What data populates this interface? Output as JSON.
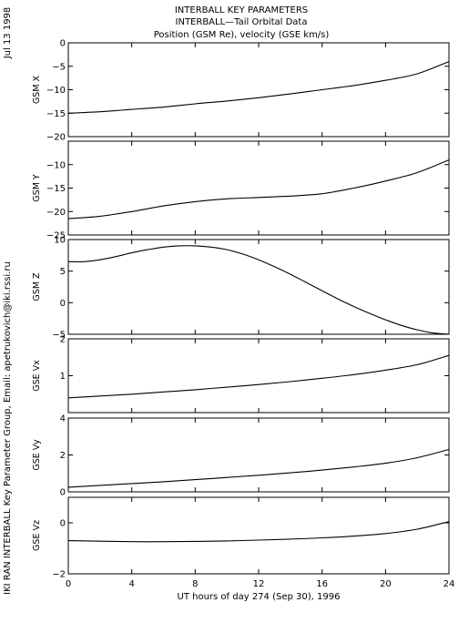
{
  "header": {
    "line1": "INTERBALL KEY PARAMETERS",
    "line2": "INTERBALL—Tail Orbital Data",
    "line3": "Position (GSM Re), velocity (GSE km/s)"
  },
  "side_date": "Jul 13 1998",
  "side_credit": "IKI RAN INTERBALL Key Parameter Group, Email: apetrukovich@iki.rssi.ru",
  "xaxis": {
    "label": "UT hours of day 274 (Sep 30), 1996",
    "ticks": [
      "0",
      "4",
      "8",
      "12",
      "16",
      "20",
      "24"
    ],
    "range": [
      0,
      24
    ]
  },
  "chart_data": [
    {
      "type": "line",
      "ylabel": "GSM X",
      "ylim": [
        -20,
        0
      ],
      "yticks": [
        0,
        -5,
        -10,
        -15,
        -20
      ],
      "ytick_labels": [
        "0",
        "−5",
        "−10",
        "−15",
        "−20"
      ],
      "series": [
        {
          "x": [
            0,
            2,
            4,
            6,
            8,
            10,
            12,
            14,
            16,
            18,
            20,
            22,
            24
          ],
          "values": [
            -15.0,
            -14.7,
            -14.2,
            -13.7,
            -13.0,
            -12.4,
            -11.7,
            -10.9,
            -10.0,
            -9.1,
            -8.0,
            -6.6,
            -4.0
          ]
        }
      ]
    },
    {
      "type": "line",
      "ylabel": "GSM Y",
      "ylim": [
        -25,
        -5
      ],
      "yticks": [
        -10,
        -15,
        -20,
        -25
      ],
      "ytick_labels": [
        "−10",
        "−15",
        "−20",
        "−25"
      ],
      "series": [
        {
          "x": [
            0,
            2,
            4,
            6,
            8,
            10,
            12,
            14,
            16,
            18,
            20,
            22,
            24
          ],
          "values": [
            -21.5,
            -21.0,
            -20.0,
            -18.8,
            -17.9,
            -17.3,
            -17.0,
            -16.7,
            -16.2,
            -15.0,
            -13.5,
            -11.7,
            -9.0
          ]
        }
      ]
    },
    {
      "type": "line",
      "ylabel": "GSM Z",
      "ylim": [
        -5,
        10
      ],
      "yticks": [
        10,
        5,
        0,
        -5
      ],
      "ytick_labels": [
        "10",
        "5",
        "0",
        "−5"
      ],
      "series": [
        {
          "x": [
            0,
            1,
            2,
            3,
            4,
            5,
            6,
            7,
            8,
            9,
            10,
            11,
            12,
            13,
            14,
            15,
            16,
            17,
            18,
            19,
            20,
            21,
            22,
            23,
            24
          ],
          "values": [
            6.5,
            6.5,
            6.8,
            7.3,
            7.9,
            8.4,
            8.8,
            9.0,
            9.0,
            8.8,
            8.4,
            7.7,
            6.8,
            5.7,
            4.5,
            3.2,
            1.9,
            0.6,
            -0.6,
            -1.7,
            -2.7,
            -3.6,
            -4.3,
            -4.8,
            -5.0
          ]
        }
      ]
    },
    {
      "type": "line",
      "ylabel": "GSE Vx",
      "ylim": [
        0,
        2
      ],
      "yticks": [
        2,
        1
      ],
      "ytick_labels": [
        "2",
        "1"
      ],
      "series": [
        {
          "x": [
            0,
            2,
            4,
            6,
            8,
            10,
            12,
            14,
            16,
            18,
            20,
            22,
            24
          ],
          "values": [
            0.4,
            0.45,
            0.5,
            0.56,
            0.62,
            0.69,
            0.76,
            0.84,
            0.93,
            1.03,
            1.15,
            1.3,
            1.55
          ]
        }
      ]
    },
    {
      "type": "line",
      "ylabel": "GSE Vy",
      "ylim": [
        0,
        4
      ],
      "yticks": [
        4,
        2,
        0
      ],
      "ytick_labels": [
        "4",
        "2",
        "0"
      ],
      "series": [
        {
          "x": [
            0,
            2,
            4,
            6,
            8,
            10,
            12,
            14,
            16,
            18,
            20,
            22,
            24
          ],
          "values": [
            0.25,
            0.35,
            0.45,
            0.55,
            0.66,
            0.78,
            0.9,
            1.03,
            1.18,
            1.35,
            1.55,
            1.85,
            2.3
          ]
        }
      ]
    },
    {
      "type": "line",
      "ylabel": "GSE Vz",
      "ylim": [
        -2,
        1
      ],
      "yticks": [
        0,
        -2
      ],
      "ytick_labels": [
        "0",
        "−2"
      ],
      "series": [
        {
          "x": [
            0,
            2,
            4,
            6,
            8,
            10,
            12,
            14,
            16,
            18,
            20,
            22,
            24
          ],
          "values": [
            -0.7,
            -0.72,
            -0.74,
            -0.74,
            -0.73,
            -0.71,
            -0.68,
            -0.64,
            -0.59,
            -0.52,
            -0.42,
            -0.25,
            0.05
          ]
        }
      ]
    }
  ]
}
